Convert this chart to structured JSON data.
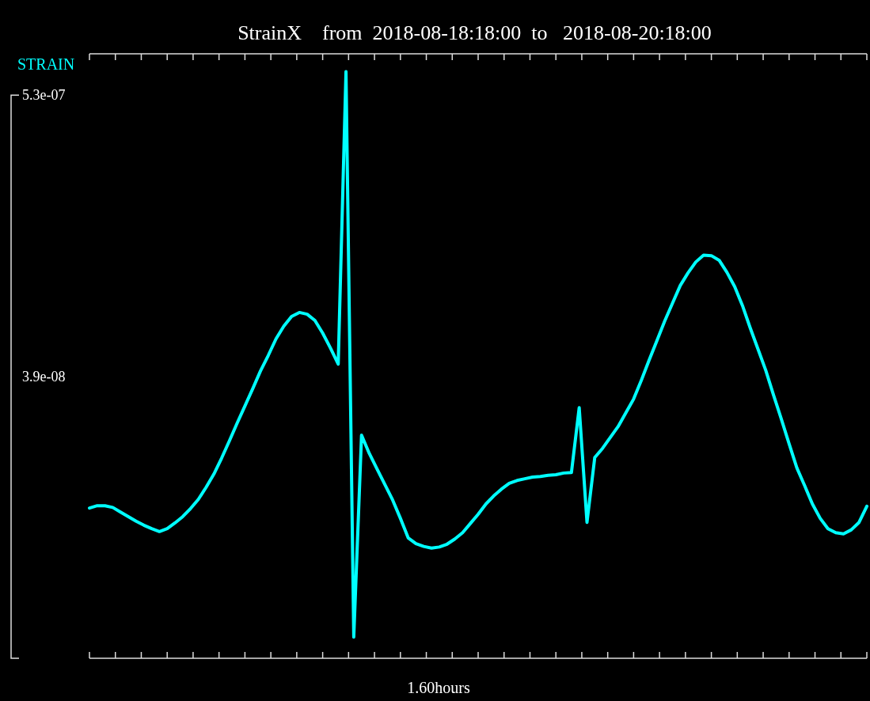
{
  "chart_data": {
    "type": "line",
    "title": "StrainX    from  2018-08-18:18:00  to   2018-08-20:18:00",
    "xlabel": "1.60hours",
    "legend": "top left",
    "categories": [
      null,
      null,
      null,
      null,
      null,
      null,
      null,
      null,
      null,
      null,
      null,
      null,
      null,
      null,
      null,
      null,
      null,
      null,
      null,
      null,
      null,
      null,
      null,
      null,
      null,
      null,
      null,
      null,
      null,
      null,
      null,
      null,
      null,
      null,
      null,
      null,
      null,
      null,
      null,
      null,
      null,
      null,
      null,
      null,
      null,
      null,
      null,
      null,
      null,
      null,
      null,
      null,
      null,
      null,
      null,
      null,
      null,
      null,
      null,
      null,
      null,
      null,
      null,
      null,
      null,
      null,
      null,
      null,
      null,
      null,
      null,
      null,
      null,
      null,
      null,
      null,
      null,
      null,
      null,
      null,
      null,
      null,
      null,
      null,
      null,
      null,
      null,
      null,
      null,
      null,
      null,
      null,
      null,
      null,
      null,
      null,
      null,
      null,
      null,
      null,
      null
    ],
    "ylim": [
      -4.52e-07,
      6.02e-07
    ],
    "yticks": [
      {
        "value": 5.3e-07,
        "label": "5.3e-07"
      },
      {
        "value": 3.9e-08,
        "label": "3.9e-08"
      }
    ],
    "series": [
      {
        "name": "STRAIN",
        "color": "#00ffff",
        "values": [
          -1.9e-07,
          -1.86e-07,
          -1.86e-07,
          -1.89e-07,
          -1.97e-07,
          -2.05e-07,
          -2.13e-07,
          -2.2e-07,
          -2.26e-07,
          -2.31e-07,
          -2.26e-07,
          -2.16e-07,
          -2.05e-07,
          -1.91e-07,
          -1.75e-07,
          -1.54e-07,
          -1.31e-07,
          -1.03e-07,
          -7.3e-08,
          -4.2e-08,
          -1.2e-08,
          1.8e-08,
          4.9e-08,
          7.6e-08,
          1.05e-07,
          1.27e-07,
          1.44e-07,
          1.51e-07,
          1.48e-07,
          1.37e-07,
          1.15e-07,
          8.9e-08,
          6.1e-08,
          5.71e-07,
          -4.15e-07,
          -6.3e-08,
          -9.5e-08,
          -1.22e-07,
          -1.49e-07,
          -1.76e-07,
          -2.08e-07,
          -2.42e-07,
          -2.52e-07,
          -2.57e-07,
          -2.6e-07,
          -2.58e-07,
          -2.53e-07,
          -2.44e-07,
          -2.33e-07,
          -2.17e-07,
          -2.01e-07,
          -1.83e-07,
          -1.69e-07,
          -1.57e-07,
          -1.47e-07,
          -1.42e-07,
          -1.39e-07,
          -1.36e-07,
          -1.35e-07,
          -1.33e-07,
          -1.32e-07,
          -1.29e-07,
          -1.28e-07,
          -1.5e-08,
          -2.15e-07,
          -1.02e-07,
          -8.6e-08,
          -6.7e-08,
          -4.8e-08,
          -2.4e-08,
          0,
          3.3e-08,
          6.8e-08,
          1.02e-07,
          1.36e-07,
          1.67e-07,
          1.98e-07,
          2.2e-07,
          2.39e-07,
          2.51e-07,
          2.5e-07,
          2.42e-07,
          2.21e-07,
          1.96e-07,
          1.63e-07,
          1.24e-07,
          8.7e-08,
          5e-08,
          7e-09,
          -3.5e-08,
          -7.8e-08,
          -1.2e-07,
          -1.51e-07,
          -1.83e-07,
          -2.08e-07,
          -2.26e-07,
          -2.33e-07,
          -2.35e-07,
          -2.28e-07,
          -2.15e-07,
          -1.87e-07
        ]
      }
    ],
    "marker": "none",
    "line_style": "solid"
  }
}
